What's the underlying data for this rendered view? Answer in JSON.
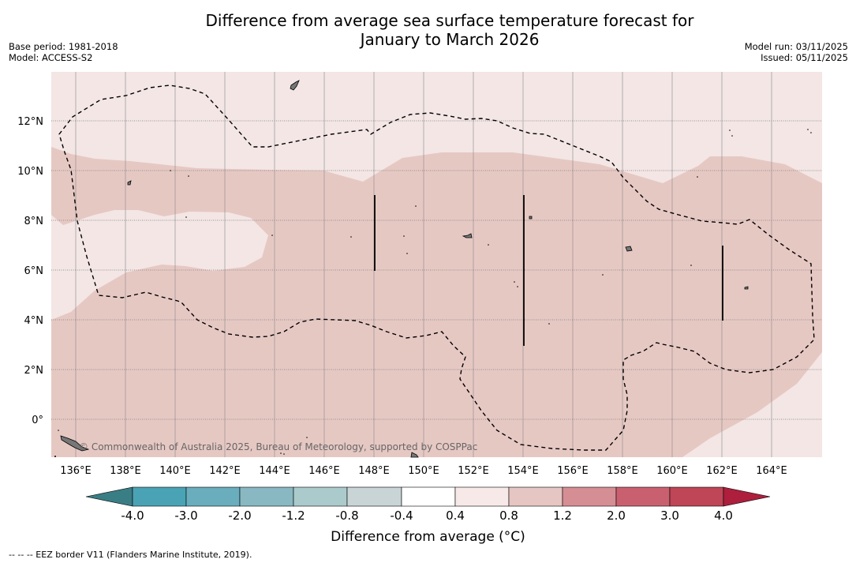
{
  "title_line1": "Difference from average sea surface temperature forecast for",
  "title_line2": "January to March 2026",
  "base_period": "Base period: 1981-2018",
  "model": "Model: ACCESS-S2",
  "model_run": "Model run: 03/11/2025",
  "issued": "Issued: 05/11/2025",
  "map": {
    "lat_labels": [
      "12°N",
      "10°N",
      "8°N",
      "6°N",
      "4°N",
      "2°N",
      "0°"
    ],
    "lon_labels": [
      "136°E",
      "138°E",
      "140°E",
      "142°E",
      "144°E",
      "146°E",
      "148°E",
      "150°E",
      "152°E",
      "154°E",
      "156°E",
      "158°E",
      "160°E",
      "162°E",
      "164°E"
    ],
    "credit": "© Commonwealth of Australia 2025, Bureau of Meteorology, supported by COSPPac",
    "colors": {
      "light_anomaly": "#f3e6e5",
      "mid_anomaly": "#e6c8c3"
    }
  },
  "colorbar": {
    "labels": [
      "-4.0",
      "-3.0",
      "-2.0",
      "-1.2",
      "-0.8",
      "-0.4",
      "0.4",
      "0.8",
      "1.2",
      "2.0",
      "3.0",
      "4.0"
    ],
    "colors": [
      "#3a7e85",
      "#4aa3b4",
      "#6aadbd",
      "#89b8c2",
      "#abcacc",
      "#c9d4d6",
      "#ffffff",
      "#f6e9e8",
      "#e6c6c2",
      "#d58e94",
      "#c96070",
      "#be4657",
      "#ad1f3c"
    ],
    "title": "Difference from average (°C)"
  },
  "footnote": "--  --  -- EEZ border V11 (Flanders Marine Institute, 2019)."
}
